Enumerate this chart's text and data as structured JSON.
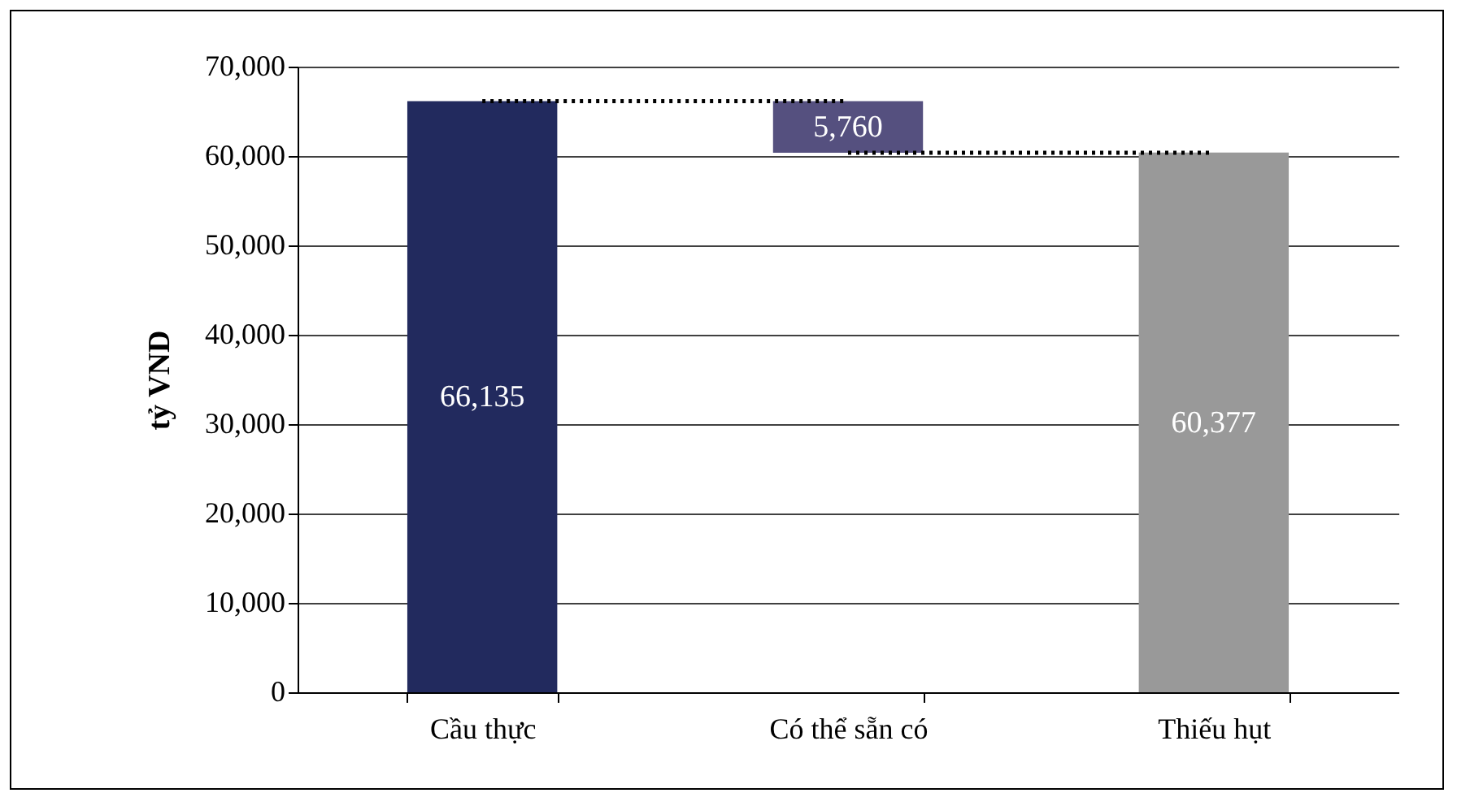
{
  "chart_data": {
    "type": "bar",
    "ylabel": "tỷ VND",
    "categories": [
      "Cầu thực",
      "Có thể sẵn có",
      "Thiếu hụt"
    ],
    "values": [
      66135,
      5760,
      60377
    ],
    "base": [
      0,
      60375,
      0
    ],
    "colors": [
      "#222a5e",
      "#55507f",
      "#999999"
    ],
    "value_labels": [
      "66,135",
      "5,760",
      "60,377"
    ],
    "ylim": [
      0,
      70000
    ],
    "yticks": [
      0,
      {
        "value": 10000,
        "label": "10,000"
      },
      {
        "value": 20000,
        "label": "20,000"
      },
      {
        "value": 30000,
        "label": "30,000"
      },
      {
        "value": 40000,
        "label": "40,000"
      },
      {
        "value": 50000,
        "label": "50,000"
      },
      {
        "value": 60000,
        "label": "60,000"
      },
      {
        "value": 70000,
        "label": "70,000"
      }
    ],
    "grid": "y",
    "legend": false
  }
}
